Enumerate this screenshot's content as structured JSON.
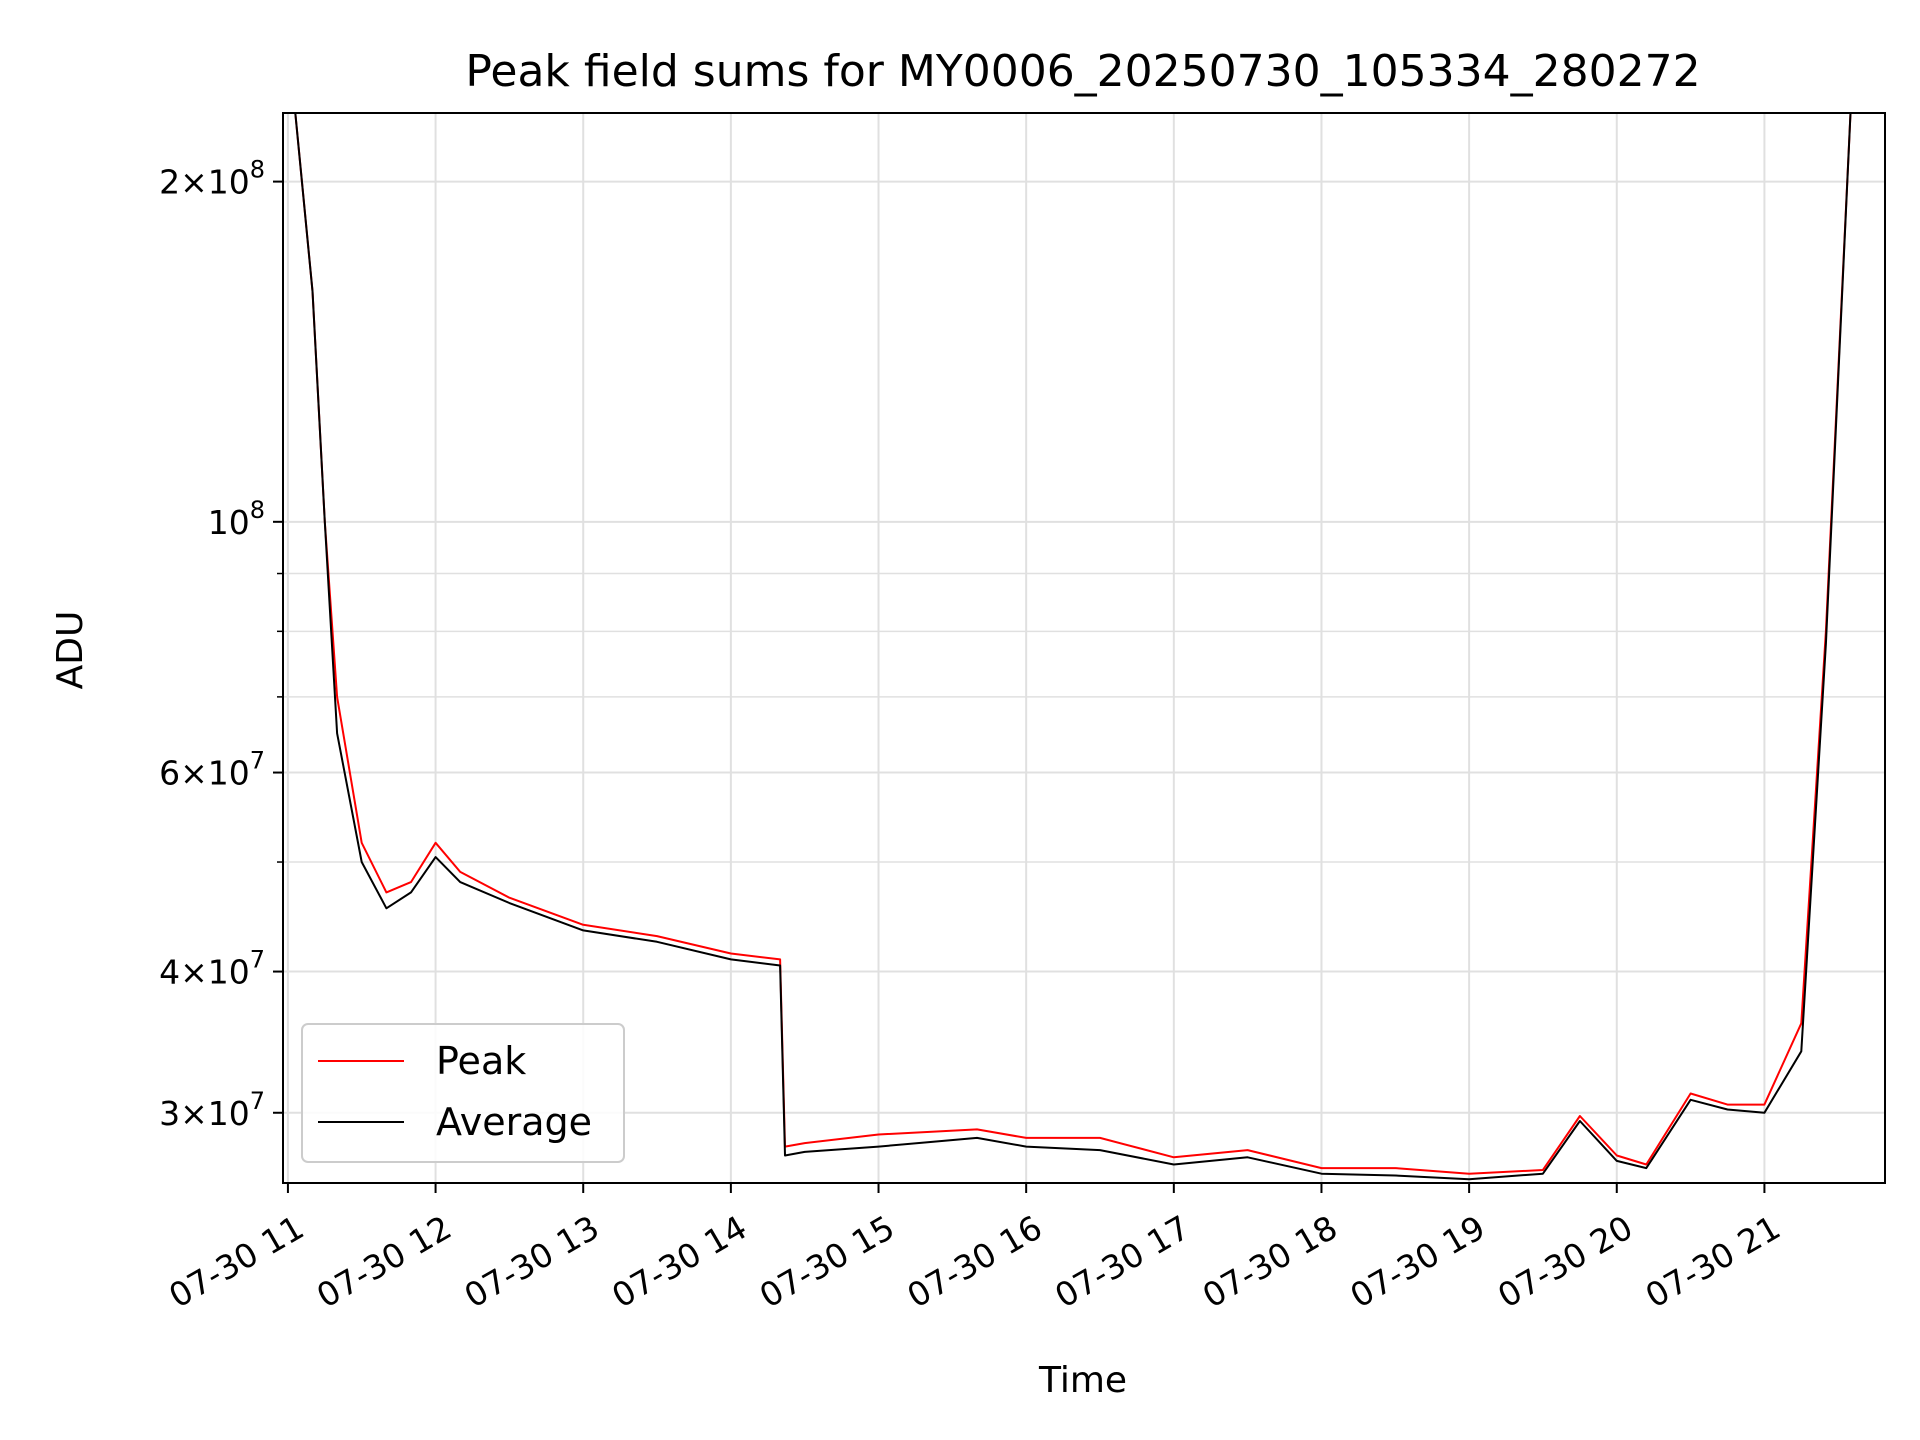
{
  "chart_data": {
    "type": "line",
    "title": "Peak field sums for MY0006_20250730_105334_280272",
    "xlabel": "Time",
    "ylabel": "ADU",
    "yscale": "log",
    "ylim": [
      26000000,
      230000000
    ],
    "xlim": [
      "07-30 10:58",
      "07-30 21:49"
    ],
    "grid": true,
    "legend_position": "lower-left",
    "x_ticks": [
      {
        "time": "07-30 11:00",
        "label": "07-30 11"
      },
      {
        "time": "07-30 12:00",
        "label": "07-30 12"
      },
      {
        "time": "07-30 13:00",
        "label": "07-30 13"
      },
      {
        "time": "07-30 14:00",
        "label": "07-30 14"
      },
      {
        "time": "07-30 15:00",
        "label": "07-30 15"
      },
      {
        "time": "07-30 16:00",
        "label": "07-30 16"
      },
      {
        "time": "07-30 17:00",
        "label": "07-30 17"
      },
      {
        "time": "07-30 18:00",
        "label": "07-30 18"
      },
      {
        "time": "07-30 19:00",
        "label": "07-30 19"
      },
      {
        "time": "07-30 20:00",
        "label": "07-30 20"
      },
      {
        "time": "07-30 21:00",
        "label": "07-30 21"
      }
    ],
    "y_ticks": [
      {
        "value": 30000000,
        "mant": "3",
        "exp": "7"
      },
      {
        "value": 40000000,
        "mant": "4",
        "exp": "7"
      },
      {
        "value": 60000000,
        "mant": "6",
        "exp": "7"
      },
      {
        "value": 100000000,
        "mant": "",
        "exp": "8"
      },
      {
        "value": 200000000,
        "mant": "2",
        "exp": "8"
      }
    ],
    "y_minor_ticks": [
      50000000,
      70000000,
      80000000,
      90000000
    ],
    "colors": {
      "peak": "#ff0000",
      "average": "#000000",
      "grid": "#e0e0e0"
    },
    "series": [
      {
        "name": "Peak",
        "color": "#ff0000",
        "x": [
          "07-30 10:58",
          "07-30 11:03",
          "07-30 11:10",
          "07-30 11:15",
          "07-30 11:20",
          "07-30 11:30",
          "07-30 11:40",
          "07-30 11:50",
          "07-30 12:00",
          "07-30 12:10",
          "07-30 12:30",
          "07-30 13:00",
          "07-30 13:30",
          "07-30 14:00",
          "07-30 14:20",
          "07-30 14:22",
          "07-30 14:30",
          "07-30 15:00",
          "07-30 15:40",
          "07-30 16:00",
          "07-30 16:30",
          "07-30 17:00",
          "07-30 17:30",
          "07-30 18:00",
          "07-30 18:30",
          "07-30 19:00",
          "07-30 19:30",
          "07-30 19:45",
          "07-30 20:00",
          "07-30 20:12",
          "07-30 20:30",
          "07-30 20:45",
          "07-30 21:00",
          "07-30 21:15",
          "07-30 21:25",
          "07-30 21:35",
          "07-30 21:49"
        ],
        "y": [
          230000000,
          230000000,
          160000000,
          100000000,
          70000000,
          52000000,
          47000000,
          48000000,
          52000000,
          49000000,
          46500000,
          44000000,
          43000000,
          41500000,
          41000000,
          28000000,
          28200000,
          28700000,
          29000000,
          28500000,
          28500000,
          27400000,
          27800000,
          26800000,
          26800000,
          26500000,
          26700000,
          29800000,
          27500000,
          27000000,
          31200000,
          30500000,
          30500000,
          36000000,
          80000000,
          230000000,
          230000000
        ]
      },
      {
        "name": "Average",
        "color": "#000000",
        "x": [
          "07-30 10:58",
          "07-30 11:03",
          "07-30 11:10",
          "07-30 11:15",
          "07-30 11:20",
          "07-30 11:30",
          "07-30 11:40",
          "07-30 11:50",
          "07-30 12:00",
          "07-30 12:10",
          "07-30 12:30",
          "07-30 13:00",
          "07-30 13:30",
          "07-30 14:00",
          "07-30 14:20",
          "07-30 14:22",
          "07-30 14:30",
          "07-30 15:00",
          "07-30 15:40",
          "07-30 16:00",
          "07-30 16:30",
          "07-30 17:00",
          "07-30 17:30",
          "07-30 18:00",
          "07-30 18:30",
          "07-30 19:00",
          "07-30 19:30",
          "07-30 19:45",
          "07-30 20:00",
          "07-30 20:12",
          "07-30 20:30",
          "07-30 20:45",
          "07-30 21:00",
          "07-30 21:15",
          "07-30 21:25",
          "07-30 21:35",
          "07-30 21:49"
        ],
        "y": [
          230000000,
          230000000,
          160000000,
          100000000,
          65000000,
          50000000,
          45500000,
          47000000,
          50500000,
          48000000,
          46000000,
          43500000,
          42500000,
          41000000,
          40500000,
          27500000,
          27700000,
          28000000,
          28500000,
          28000000,
          27800000,
          27000000,
          27400000,
          26500000,
          26400000,
          26200000,
          26500000,
          29500000,
          27200000,
          26800000,
          30800000,
          30200000,
          30000000,
          34000000,
          78000000,
          230000000,
          230000000
        ]
      }
    ]
  }
}
